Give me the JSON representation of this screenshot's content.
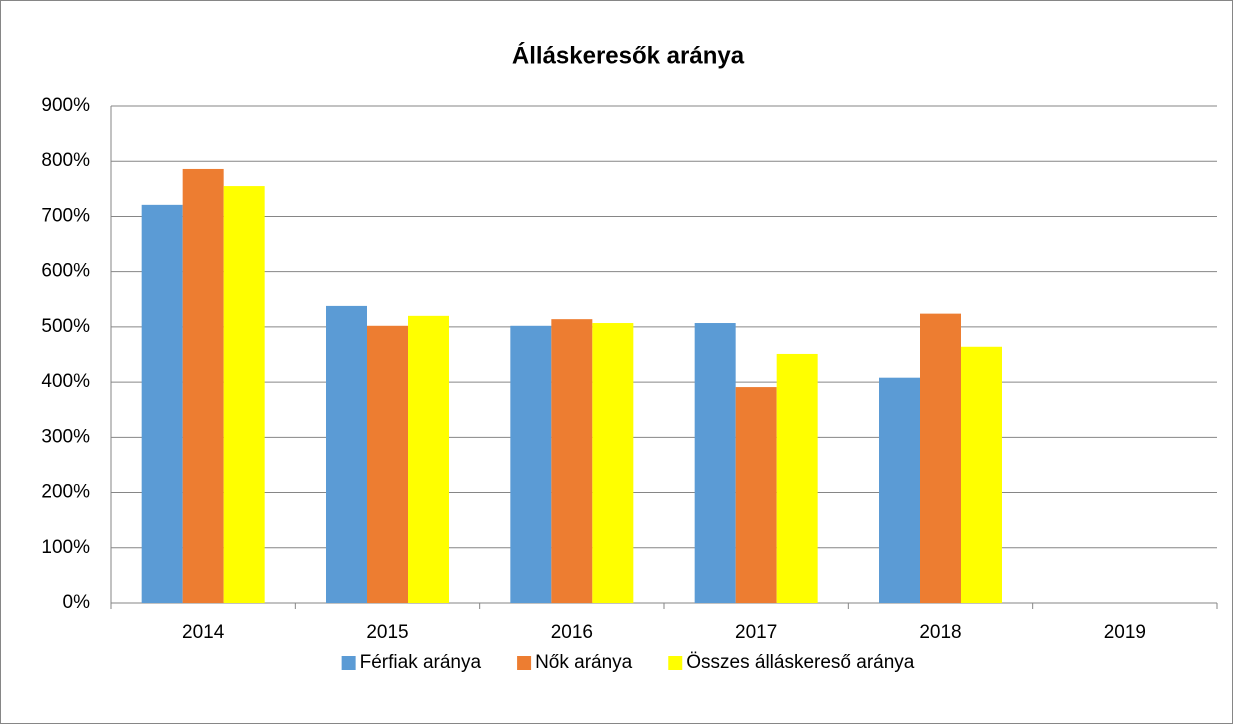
{
  "chart_data": {
    "type": "bar",
    "title": "Álláskeresők aránya",
    "categories": [
      "2014",
      "2015",
      "2016",
      "2017",
      "2018",
      "2019"
    ],
    "series": [
      {
        "name": "Férfiak aránya",
        "color": "#5b9bd5",
        "values": [
          721,
          538,
          502,
          507,
          408,
          null
        ]
      },
      {
        "name": "Nők aránya",
        "color": "#ed7d31",
        "values": [
          786,
          502,
          514,
          391,
          524,
          null
        ]
      },
      {
        "name": "Összes álláskereső aránya",
        "color": "#ffff00",
        "values": [
          755,
          520,
          507,
          451,
          464,
          null
        ]
      }
    ],
    "ylim": [
      0,
      900
    ],
    "yticks": [
      {
        "value": 0,
        "label": "0%"
      },
      {
        "value": 100,
        "label": "100%"
      },
      {
        "value": 200,
        "label": "200%"
      },
      {
        "value": 300,
        "label": "300%"
      },
      {
        "value": 400,
        "label": "400%"
      },
      {
        "value": 500,
        "label": "500%"
      },
      {
        "value": 600,
        "label": "600%"
      },
      {
        "value": 700,
        "label": "700%"
      },
      {
        "value": 800,
        "label": "800%"
      },
      {
        "value": 900,
        "label": "900%"
      }
    ],
    "grid": true,
    "legend": "bottom"
  }
}
